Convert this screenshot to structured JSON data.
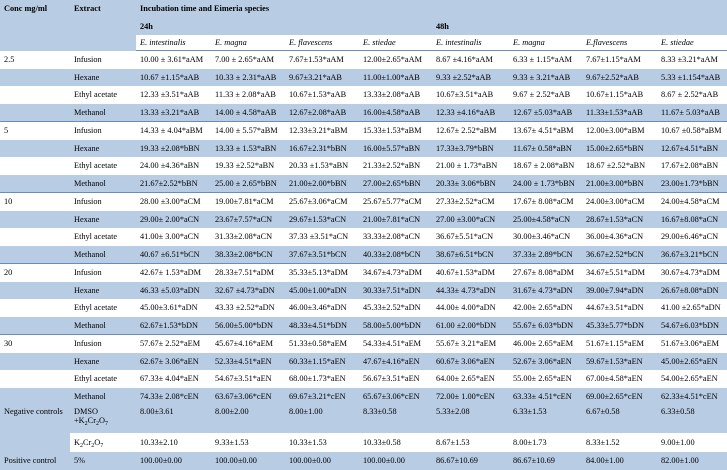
{
  "header": {
    "conc": "Conc mg/ml",
    "extract": "Extract",
    "incubation": "Incubation time and Eimeria species",
    "time1": "24h",
    "time2": "48h",
    "species": [
      "E. intestinalis",
      "E. magna",
      "E. flavescens",
      "E. stiedae",
      "E. intestinalis",
      "E. magna",
      "E.flavescens",
      "E. stiedae"
    ]
  },
  "rows": [
    {
      "conc": "2.5",
      "extract": "Infusion",
      "values": [
        "10.00 ± 3.61*aAM",
        "7.00 ± 2.65*aAM",
        "7.67±1.53*aAM",
        "12.00±2.65*aAM",
        "8.67 ±4.16*aAM",
        "6.33 ± 1.15*aAM",
        "7.67±1.15*aAM",
        "8.33 ±3.21*aAM"
      ]
    },
    {
      "conc": "",
      "extract": "Hexane",
      "values": [
        "10.67 ±1.15*aAB",
        "10.33 ± 2.31*aAB",
        "9.67±3.21*aAB",
        "11.00±1.00*aAB",
        "9.33 ±2.52*aAB",
        "9.33 ± 3.21*aAB",
        "9.67±2.52*aAB",
        "5.33 ±1.154*aAB"
      ]
    },
    {
      "conc": "",
      "extract": "Ethyl acetate",
      "values": [
        "12.33 ±3.51*aAB",
        "11.33 ± 2.08*aAB",
        "10.67±1.53*aAB",
        "13.33±2.08*aAB",
        "10.67±3.51*aAB",
        "9.67 ± 2.52*aAB",
        "10.67±1.15*aAB",
        "8.67 ± 2.52*aAB"
      ]
    },
    {
      "conc": "",
      "extract": "Methanol",
      "values": [
        "13.33 ±3.21*aAB",
        "14.00 ± 4.58*aAB",
        "12.67±2.08*aAB",
        "16.00±4.58*aAB",
        "12.33 ±4.16*aAB",
        "12.67 ±5.03*aAB",
        "11.33±1.53*aAB",
        "11.67± 5.03*aAB"
      ]
    },
    {
      "conc": "5",
      "extract": "Infusion",
      "values": [
        "14.33 ± 4.04*aBM",
        "14.00 ± 5.57*aBM",
        "12.33±3.21*aBM",
        "15.33±1.53*aBM",
        "12.67± 2.52*aBM",
        "13.67± 4.51*aBM",
        "12.00±3.00*aBM",
        "10.67 ±0.58*aBM"
      ]
    },
    {
      "conc": "",
      "extract": "Hexane",
      "values": [
        "19.33 ±2.08*bBN",
        "13.33 ± 1.53*aBN",
        "16.67±2.31*bBN",
        "16.00±5.57*aBN",
        "17.33±3.79*bBN",
        "11.67± 0.58*aBN",
        "15.00±2.65*bBN",
        "12.67±4.51*aBN"
      ]
    },
    {
      "conc": "",
      "extract": "Ethyl acetate",
      "values": [
        "24.00 ±4.36*aBN",
        "19.33 ±2.52*aBN",
        "20.33 ±1.53*aBN",
        "21.33±2.52*aBN",
        "21.00 ± 1.73*aBN",
        "18.67 ± 2.08*aBN",
        "18.67 ±2.52*aBN",
        "17.67±2.08*aBN"
      ]
    },
    {
      "conc": "",
      "extract": "Methanol",
      "values": [
        "21.67±2.52*bBN",
        "25.00 ± 2.65*bBN",
        "21.00±2.00*bBN",
        "27.00±2.65*bBN",
        "20.33± 3.06*bBN",
        "24.00 ± 1.73*bBN",
        "21.00±3.00*bBN",
        "23.00±1.73*bBN"
      ]
    },
    {
      "conc": "10",
      "extract": "Infusion",
      "values": [
        "28.00 ±3.00*aCM",
        "19.00±7.81*aCM",
        "25.67±3.06*aCM",
        "25.67±5.77*aCM",
        "27.33±2.52*aCM",
        "17.67± 8.08*aCM",
        "24.00±3.00*aCM",
        "24.00±4.58*aCM"
      ]
    },
    {
      "conc": "",
      "extract": "Hexane",
      "values": [
        "29.00± 2.00*aCN",
        "23.67±7.57*aCN",
        "29.67±1.53*aCN",
        "21.00±7.81*aCN",
        "27.00 ±3.00*aCN",
        "25.00±4.58*aCN",
        "28.67±1.53*aCN",
        "16.67±8.08*aCN"
      ]
    },
    {
      "conc": "",
      "extract": "Ethyl acetate",
      "values": [
        "41.00± 3.00*aCN",
        "31.33±2.08*aCN",
        "37.33 ±3.51*aCN",
        "33.33±2.08*aCN",
        "36.67±5.51*aCN",
        "30.00±3.46*aCN",
        "36.00±4.36*aCN",
        "29.00±6.46*aCN"
      ]
    },
    {
      "conc": "",
      "extract": "Methanol",
      "values": [
        "40.67 ±6.51*bCN",
        "38.33±2.08*bCN",
        "37.67±3.51*bCN",
        "40.33±2.08*bCN",
        "38.67±6.51*bCN",
        "37.33± 2.89*bCN",
        "36.67±2.52*bCN",
        "36.67±3.21*bCN"
      ]
    },
    {
      "conc": "20",
      "extract": "Infusion",
      "values": [
        "42.67± 1.53*aDM",
        "28.33±7.51*aDM",
        "35.33±5.13*aDM",
        "34.67±4.73*aDM",
        "40.67±1.53*aDM",
        "27.67± 8.08*aDM",
        "34.67±5.51*aDM",
        "30.67±4.73*aDM"
      ]
    },
    {
      "conc": "",
      "extract": "Hexane",
      "values": [
        "46.33 ±5.03*aDN",
        "32.67 ±4.73*aDN",
        "45.00±1.00*aDN",
        "30.33±7.51*aDN",
        "44.33± 4.73*aDN",
        "31.67± 4.73*aDN",
        "39.00±7.94*aDN",
        "26.67±8.08*aDN"
      ]
    },
    {
      "conc": "",
      "extract": "Ethyl acetate",
      "values": [
        "45.00±3.61*aDN",
        "43.33 ±2.52*aDN",
        "46.00±3.46*aDN",
        "45.33±2.52*aDN",
        "44.00± 4.00*aDN",
        "42.00± 2.65*aDN",
        "44.67±3.51*aDN",
        "41.00 ±2.65*aDN"
      ]
    },
    {
      "conc": "",
      "extract": "Methanol",
      "values": [
        "62.67±1.53*bDN",
        "56.00±5.00*bDN",
        "48.33±4.51*bDN",
        "58.00±5.00*bDN",
        "61.00 ±2.00*bDN",
        "55.67± 6.03*bDN",
        "45.33±5.77*bDN",
        "54.67±6.03*bDN"
      ]
    },
    {
      "conc": "30",
      "extract": "Infusion",
      "values": [
        "57.67± 2.52*aEM",
        "45.67±4.16*aEM",
        "51.33±0.58*aEM",
        "54.33±4.51*aEM",
        "55.67± 3.21*aEM",
        "46.00± 2.65*aEM",
        "51.67±1.15*aEM",
        "51.67±3.06*aEM"
      ]
    },
    {
      "conc": "",
      "extract": "Hexane",
      "values": [
        "62.67± 3.06*aEN",
        "52.33±4.51*aEN",
        "60.33±1.15*aEN",
        "47.67±4.16*aEN",
        "60.67± 3.06*aEN",
        "52.67± 3.06*aEN",
        "59.67±1.53*aEN",
        "45.00±2.65*aEN"
      ]
    },
    {
      "conc": "",
      "extract": "Ethyl acetate",
      "values": [
        "67.33± 4.04*aEN",
        "54.67±3.51*aEN",
        "68.00±1.73*aEN",
        "56.67±3.51*aEN",
        "64.00± 2.65*aEN",
        "55.00± 2.65*aEN",
        "67.00±4.58*aEN",
        "54.00±2.65*aEN"
      ]
    },
    {
      "conc": "",
      "extract": "Methanol",
      "values": [
        "74.33± 2.08*cEN",
        "63.67±3.06*cEN",
        "69.67±3.21*cEN",
        "65.67±3.06*cEN",
        "72.00± 1.00*cEN",
        "63.33± 4.51*cEN",
        "69.00±2.65*cEN",
        "62.33±4.51*cEN"
      ]
    }
  ],
  "negative": {
    "label": "Negative controls",
    "row1": {
      "extract_a": "DMSO",
      "extract_b": "+K",
      "sub1": "2",
      "mid": "Cr",
      "sub2": "2",
      "end": "O",
      "sub3": "7",
      "values": [
        "8.00±3.61",
        "8.00±2.00",
        "8.00±1.00",
        "8.33±0.58",
        "5.33±2.08",
        "6.33±1.53",
        "6.67±0.58",
        "6.33±0.58"
      ]
    },
    "row2": {
      "extract_a": "K",
      "sub1": "2",
      "mid": "Cr",
      "sub2": "2",
      "end": "O",
      "sub3": "7",
      "values": [
        "10.33±2.10",
        "9.33±1.53",
        "10.33±1.53",
        "10.33±0.58",
        "8.67±1.53",
        "8.00±1.73",
        "8.33±1.52",
        "9.00±1.00"
      ]
    }
  },
  "positive": {
    "label": "Positive control",
    "extract": "5%",
    "values": [
      "100.00±0.00",
      "100.00±0.00",
      "100.00±0.00",
      "100.00±0.00",
      "86.67±10.69",
      "86.67±10.69",
      "84.00±1.00",
      "82.00±1.00"
    ]
  }
}
